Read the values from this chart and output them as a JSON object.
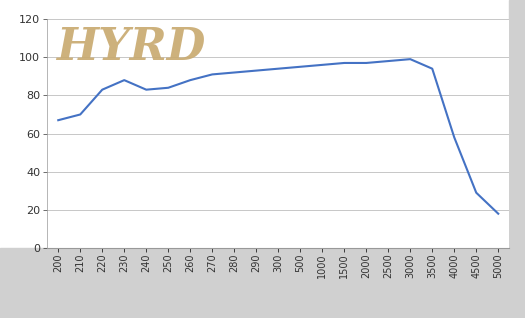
{
  "x_labels": [
    "200",
    "210",
    "220",
    "230",
    "240",
    "250",
    "260",
    "270",
    "280",
    "290",
    "300",
    "500",
    "1000",
    "1500",
    "2000",
    "2500",
    "3000",
    "3500",
    "4000",
    "4500",
    "5000"
  ],
  "x_positions": [
    0,
    1,
    2,
    3,
    4,
    5,
    6,
    7,
    8,
    9,
    10,
    11,
    12,
    13,
    14,
    15,
    16,
    17,
    18,
    19,
    20
  ],
  "y_values": [
    67,
    70,
    83,
    88,
    83,
    84,
    88,
    91,
    92,
    93,
    94,
    95,
    96,
    97,
    97,
    98,
    99,
    94,
    58,
    29,
    18
  ],
  "line_color": "#4472C4",
  "line_width": 1.5,
  "ylim": [
    0,
    120
  ],
  "yticks": [
    0,
    20,
    40,
    60,
    80,
    100,
    120
  ],
  "background_color": "#ffffff",
  "plot_bg_color": "#ffffff",
  "grid_color": "#b0b0b0",
  "bottom_bar_color": "#d0d0d0",
  "watermark_color": "#C8A96E",
  "watermark_text": "HYRD",
  "watermark_fontsize": 32,
  "tick_fontsize": 7,
  "ytick_fontsize": 8
}
